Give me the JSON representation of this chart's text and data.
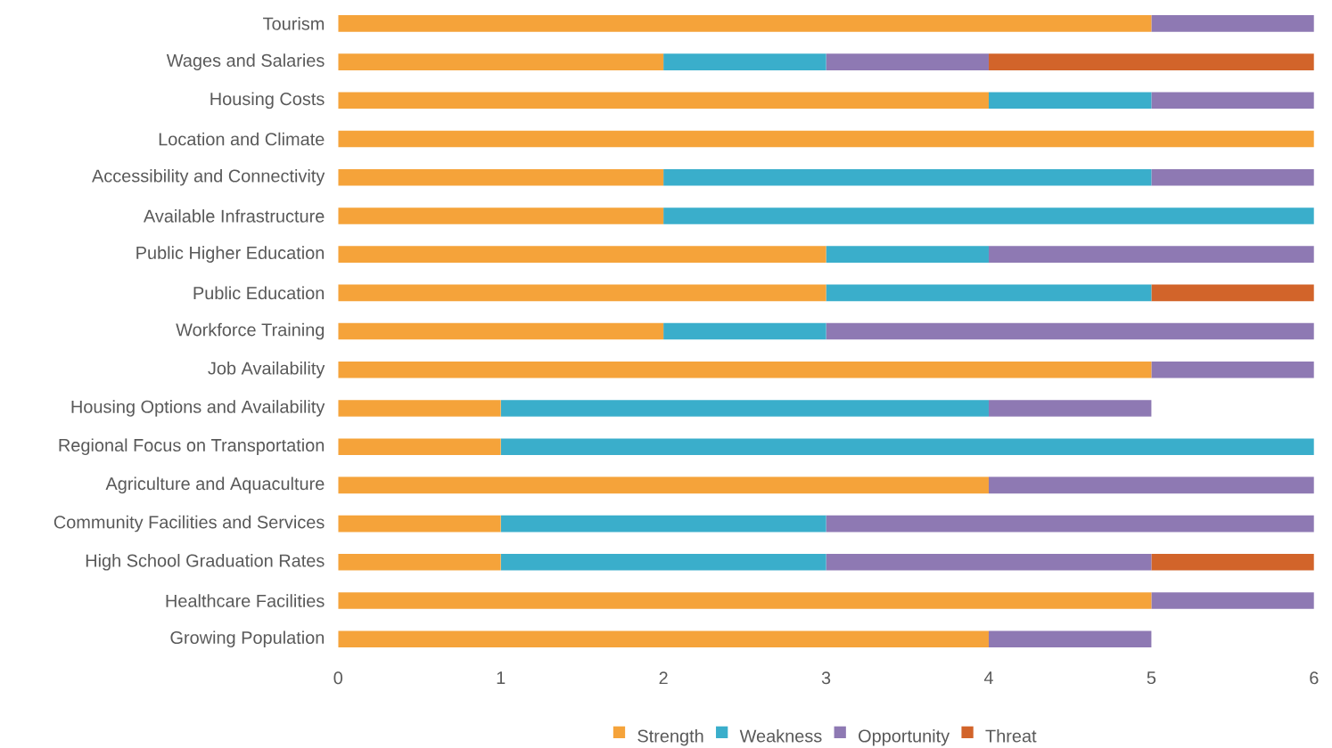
{
  "chart_data": {
    "type": "bar",
    "orientation": "horizontal",
    "stacked": true,
    "categories": [
      "Tourism",
      "Wages and Salaries",
      "Housing Costs",
      "Location and Climate",
      "Accessibility and Connectivity",
      "Available Infrastructure",
      "Public Higher Education",
      "Public Education",
      "Workforce Training",
      "Job Availability",
      "Housing Options and Availability",
      "Regional Focus on Transportation",
      "Agriculture and Aquaculture",
      "Community Facilities and Services",
      "High School Graduation Rates",
      "Healthcare Facilities",
      "Growing Population"
    ],
    "series": [
      {
        "name": "Strength",
        "color": "#f5a33a",
        "values": [
          5,
          2,
          4,
          6,
          2,
          2,
          3,
          3,
          2,
          5,
          1,
          1,
          4,
          1,
          1,
          5,
          4
        ]
      },
      {
        "name": "Weakness",
        "color": "#3aaecb",
        "values": [
          null,
          1,
          1,
          null,
          3,
          4,
          1,
          2,
          1,
          null,
          3,
          5,
          null,
          2,
          2,
          null,
          null
        ]
      },
      {
        "name": "Opportunity",
        "color": "#8e79b3",
        "values": [
          1,
          1,
          1,
          null,
          1,
          null,
          2,
          null,
          3,
          1,
          1,
          null,
          2,
          3,
          2,
          1,
          1
        ]
      },
      {
        "name": "Threat",
        "color": "#d2642a",
        "values": [
          null,
          2,
          null,
          null,
          null,
          null,
          null,
          1,
          null,
          null,
          null,
          null,
          null,
          null,
          1,
          null,
          null
        ]
      }
    ],
    "xlim": [
      0,
      6
    ],
    "xticks": [
      0,
      1,
      2,
      3,
      4,
      5,
      6
    ],
    "grid": false,
    "legend": "bottom"
  }
}
